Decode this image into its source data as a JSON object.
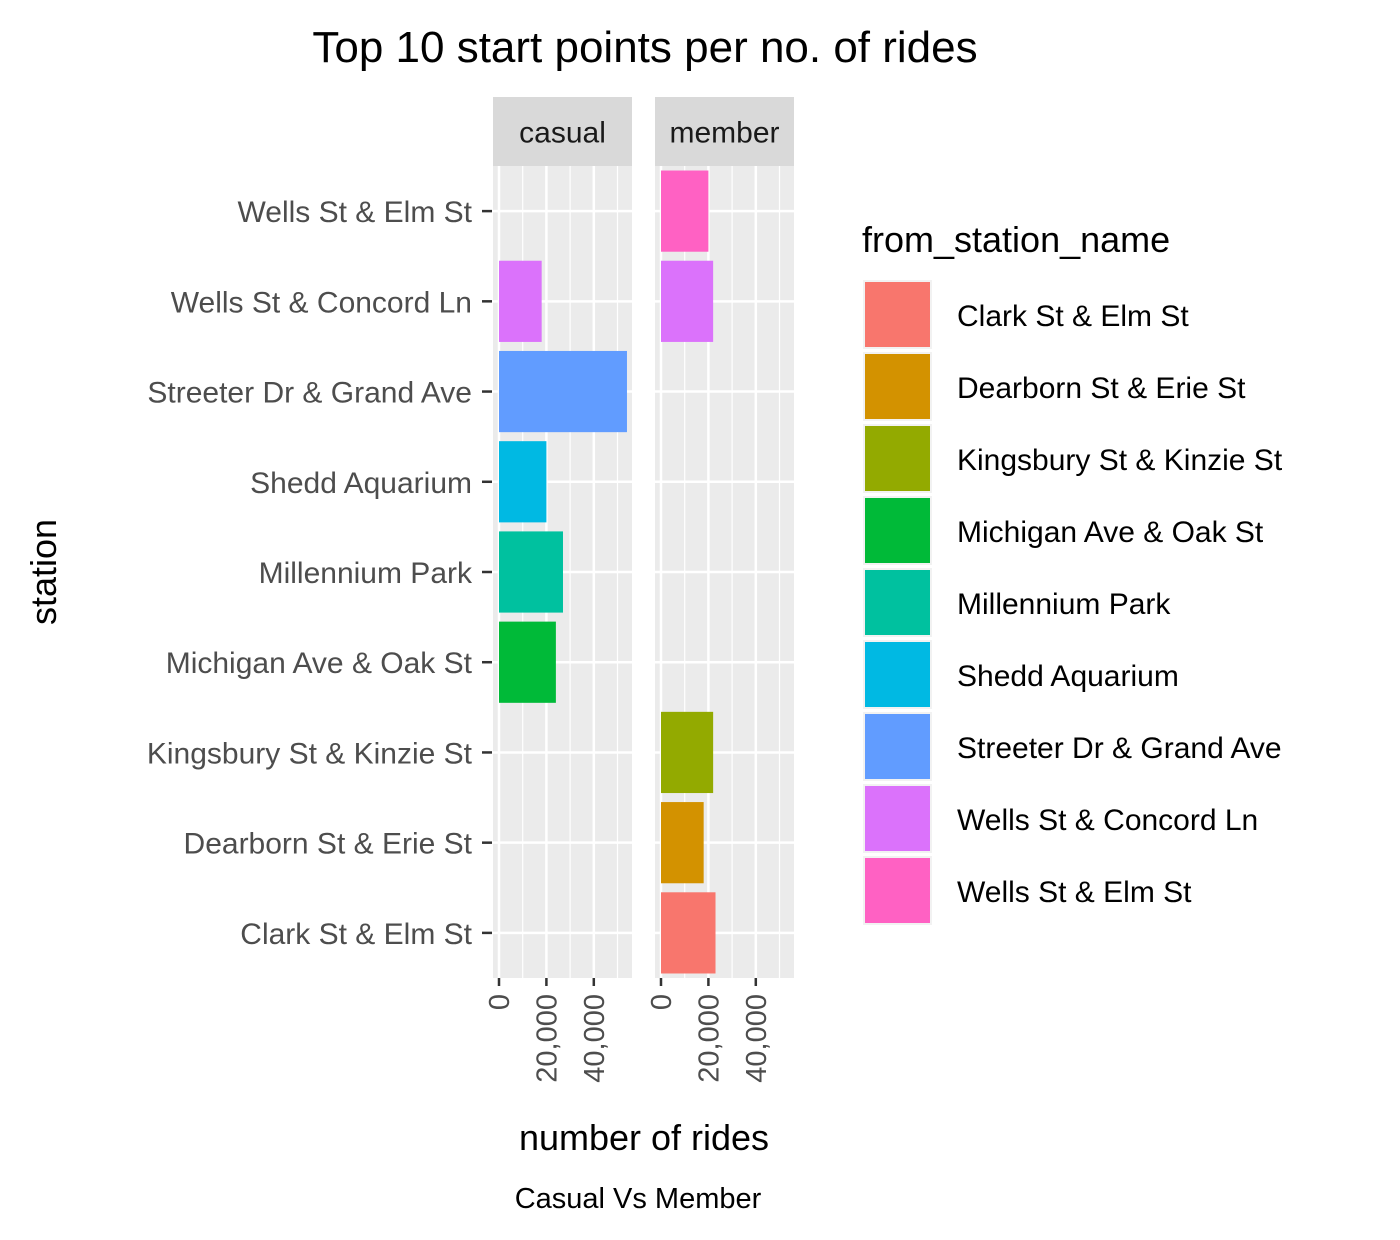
{
  "chart_data": {
    "type": "bar",
    "orientation": "horizontal",
    "faceted": true,
    "title": "Top 10 start points per no. of rides",
    "xlabel": "number of rides",
    "ylabel": "station",
    "caption": "Casual Vs Member",
    "legend_title": "from_station_name",
    "legend_position": "right",
    "grid": true,
    "xlim": [
      0,
      58000
    ],
    "x_ticks": [
      0,
      20000,
      40000
    ],
    "x_tick_labels": [
      "0",
      "20,000",
      "40,000"
    ],
    "stations": [
      "Wells St & Elm St",
      "Wells St & Concord Ln",
      "Streeter Dr & Grand Ave",
      "Shedd Aquarium",
      "Millennium Park",
      "Michigan Ave & Oak St",
      "Kingsbury St & Kinzie St",
      "Dearborn St & Erie St",
      "Clark St & Elm St"
    ],
    "legend": [
      {
        "label": "Clark St & Elm St",
        "color": "#F8766D"
      },
      {
        "label": "Dearborn St & Erie St",
        "color": "#D39200"
      },
      {
        "label": "Kingsbury St & Kinzie St",
        "color": "#93AA00"
      },
      {
        "label": "Michigan Ave & Oak St",
        "color": "#00BA38"
      },
      {
        "label": "Millennium Park",
        "color": "#00C19F"
      },
      {
        "label": "Shedd Aquarium",
        "color": "#00B9E3"
      },
      {
        "label": "Streeter Dr & Grand Ave",
        "color": "#619CFF"
      },
      {
        "label": "Wells St & Concord Ln",
        "color": "#DB72FB"
      },
      {
        "label": "Wells St & Elm St",
        "color": "#FF61C3"
      }
    ],
    "panels": [
      {
        "name": "casual",
        "bars": [
          {
            "station": "Wells St & Concord Ln",
            "value": 18000
          },
          {
            "station": "Streeter Dr & Grand Ave",
            "value": 54000
          },
          {
            "station": "Shedd Aquarium",
            "value": 20000
          },
          {
            "station": "Millennium Park",
            "value": 27000
          },
          {
            "station": "Michigan Ave & Oak St",
            "value": 24000
          }
        ]
      },
      {
        "name": "member",
        "bars": [
          {
            "station": "Wells St & Elm St",
            "value": 20000
          },
          {
            "station": "Wells St & Concord Ln",
            "value": 22000
          },
          {
            "station": "Kingsbury St & Kinzie St",
            "value": 22000
          },
          {
            "station": "Dearborn St & Erie St",
            "value": 18000
          },
          {
            "station": "Clark St & Elm St",
            "value": 23000
          }
        ]
      }
    ]
  }
}
